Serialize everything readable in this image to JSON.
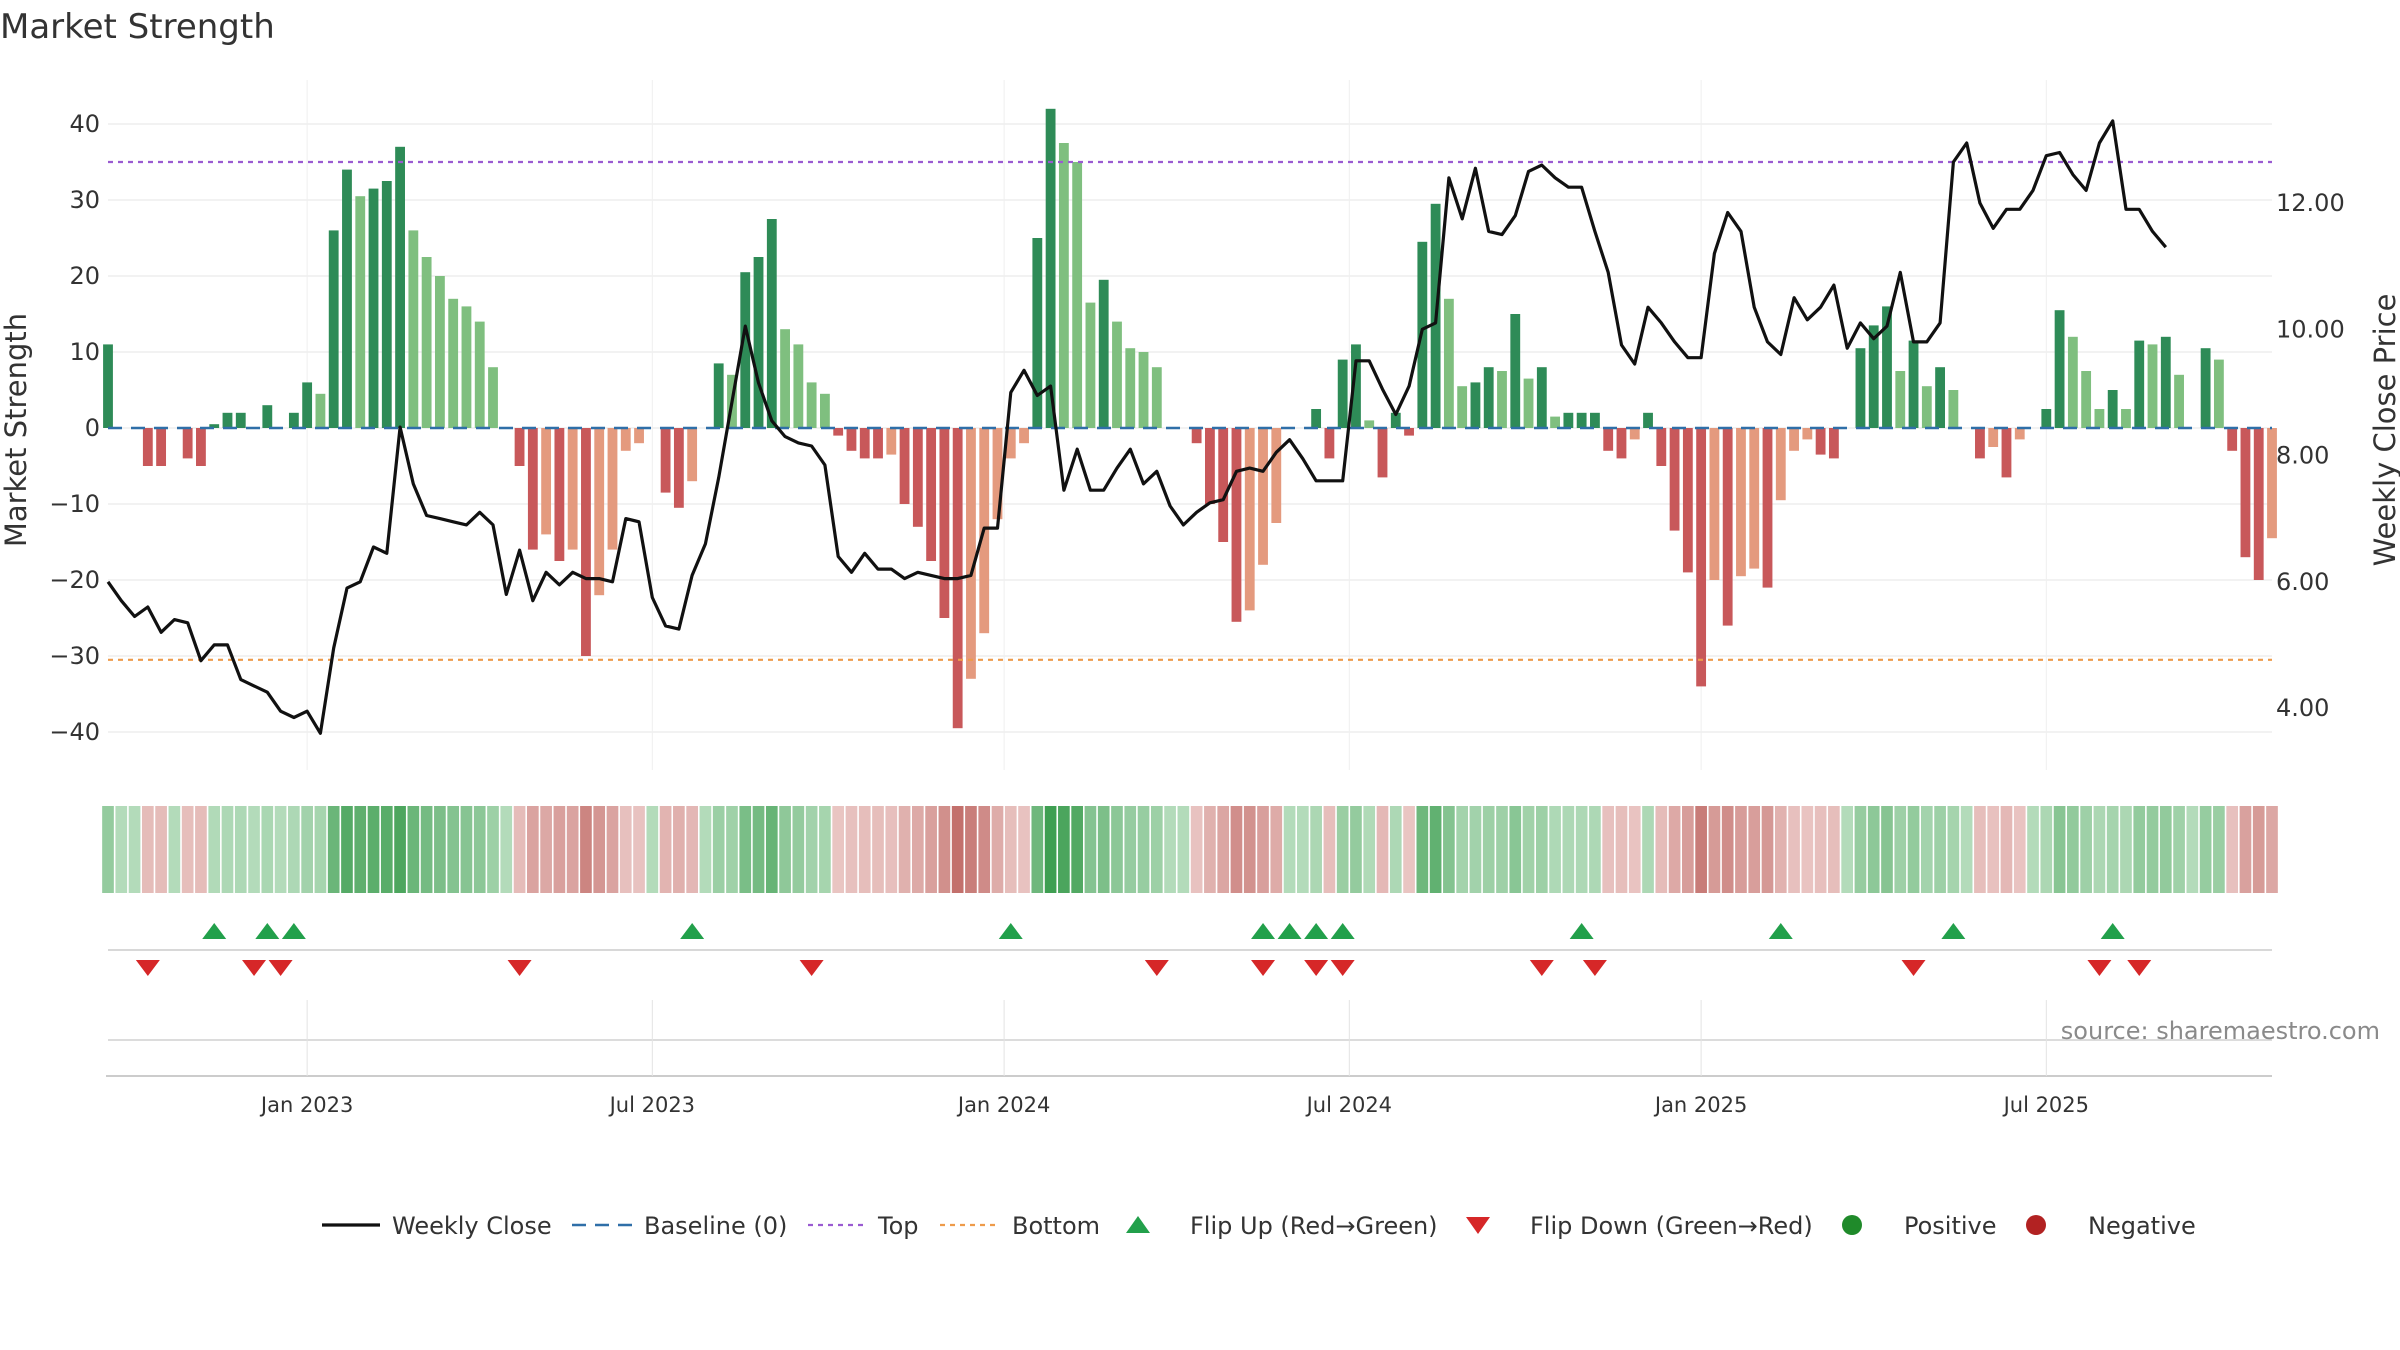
{
  "chart_data": {
    "type": "bar",
    "title": "Market Strength",
    "ylabel": "Market Strength",
    "y2label": "Weekly Close Price",
    "ylim": [
      -45,
      47
    ],
    "y2lim": [
      3.05,
      14.3
    ],
    "y_ticks": [
      "40",
      "30",
      "20",
      "10",
      "0",
      "−10",
      "−20",
      "−30",
      "−40"
    ],
    "y_tick_values": [
      40,
      30,
      20,
      10,
      0,
      -10,
      -20,
      -30,
      -40
    ],
    "y2_ticks": [
      "12.00",
      "10.00",
      "8.00",
      "6.00",
      "4.00"
    ],
    "y2_tick_values": [
      12,
      10,
      8,
      6,
      4
    ],
    "x_ticks": [
      "Jan 2023",
      "Jul 2023",
      "Jan 2024",
      "Jul 2024",
      "Jan 2025",
      "Jul 2025"
    ],
    "x_tick_week_index": [
      15,
      41,
      67.5,
      93.5,
      120,
      146
    ],
    "top_line": 35,
    "bottom_line": -30.5,
    "baseline": 0,
    "grid": true,
    "legend_position": "bottom",
    "strength": [
      11,
      0,
      0,
      -5,
      -5,
      0,
      -4,
      -5,
      0.5,
      2,
      2,
      0,
      3,
      0,
      2,
      6,
      4.5,
      26,
      34,
      30.5,
      31.5,
      32.5,
      37,
      26,
      22.5,
      20,
      17,
      16,
      14,
      8,
      0,
      -5,
      -16,
      -14,
      -17.5,
      -16,
      -30,
      -22,
      -16,
      -3,
      -2,
      0,
      -8.5,
      -10.5,
      -7,
      0,
      8.5,
      7,
      20.5,
      22.5,
      27.5,
      13,
      11,
      6,
      4.5,
      -1,
      -3,
      -4,
      -4,
      -3.5,
      -10,
      -13,
      -17.5,
      -25,
      -39.5,
      -33,
      -27,
      -12,
      -4,
      -2,
      25,
      42,
      37.5,
      35,
      16.5,
      19.5,
      14,
      10.5,
      10,
      8,
      0,
      0,
      -2,
      -10,
      -15,
      -25.5,
      -24,
      -18,
      -12.5,
      0,
      0,
      2.5,
      -4,
      9,
      11,
      1,
      -6.5,
      2,
      -1,
      24.5,
      29.5,
      17,
      5.5,
      6,
      8,
      7.5,
      15,
      6.5,
      8,
      1.5,
      2,
      2,
      2,
      -3,
      -4,
      -1.5,
      2,
      -5,
      -13.5,
      -19,
      -34,
      -20,
      -26,
      -19.5,
      -18.5,
      -21,
      -9.5,
      -3,
      -1.5,
      -3.5,
      -4,
      0,
      10.5,
      13.5,
      16,
      7.5,
      11.5,
      5.5,
      8,
      5,
      0,
      -4,
      -2.5,
      -6.5,
      -1.5,
      0,
      2.5,
      15.5,
      12,
      7.5,
      2.5,
      5,
      2.5,
      11.5,
      11,
      12,
      7,
      0,
      10.5,
      9,
      -3,
      -17,
      -20,
      -14.5
    ],
    "close": [
      6.0,
      5.7,
      5.45,
      5.6,
      5.2,
      5.4,
      5.35,
      4.75,
      5.0,
      5.0,
      4.45,
      4.35,
      4.25,
      3.95,
      3.85,
      3.95,
      3.6,
      4.95,
      5.9,
      6.0,
      6.55,
      6.45,
      8.45,
      7.55,
      7.05,
      7.0,
      6.95,
      6.9,
      7.1,
      6.9,
      5.8,
      6.5,
      5.7,
      6.15,
      5.95,
      6.15,
      6.05,
      6.05,
      6.0,
      7.0,
      6.95,
      5.75,
      5.3,
      5.25,
      6.1,
      6.6,
      7.65,
      8.85,
      10.05,
      9.15,
      8.55,
      8.3,
      8.2,
      8.15,
      7.85,
      6.4,
      6.15,
      6.45,
      6.2,
      6.2,
      6.05,
      6.15,
      6.1,
      6.05,
      6.05,
      6.1,
      6.85,
      6.85,
      9.0,
      9.35,
      8.95,
      9.1,
      7.45,
      8.1,
      7.45,
      7.45,
      7.8,
      8.1,
      7.55,
      7.75,
      7.2,
      6.9,
      7.1,
      7.25,
      7.3,
      7.75,
      7.8,
      7.75,
      8.05,
      8.25,
      7.95,
      7.6,
      7.6,
      7.6,
      9.5,
      9.5,
      9.05,
      8.65,
      9.1,
      10.0,
      10.1,
      12.4,
      11.75,
      12.55,
      11.55,
      11.5,
      11.8,
      12.5,
      12.6,
      12.4,
      12.25,
      12.25,
      11.55,
      10.9,
      9.75,
      9.45,
      10.35,
      10.1,
      9.8,
      9.55,
      9.55,
      11.2,
      11.85,
      11.55,
      10.35,
      9.8,
      9.6,
      10.5,
      10.15,
      10.35,
      10.7,
      9.7,
      10.1,
      9.85,
      10.05,
      10.9,
      9.8,
      9.8,
      10.1,
      12.65,
      12.95,
      12.0,
      11.6,
      11.9,
      11.9,
      12.2,
      12.75,
      12.8,
      12.45,
      12.2,
      12.95,
      13.3,
      11.9,
      11.9,
      11.55,
      11.3
    ],
    "flip_up_weeks": [
      8,
      12,
      14,
      44,
      68,
      87,
      89,
      91,
      93,
      111,
      126,
      139,
      151
    ],
    "flip_down_weeks": [
      3,
      11,
      13,
      31,
      53,
      79,
      87,
      91,
      93,
      108,
      112,
      136,
      150,
      153
    ],
    "legend": [
      "Weekly Close",
      "Baseline (0)",
      "Top",
      "Bottom",
      "Flip Up (Red→Green)",
      "Flip Down (Green→Red)",
      "Positive",
      "Negative"
    ],
    "source": "source: sharemaestro.com"
  },
  "colors": {
    "pos_dark": "#2e8b57",
    "pos_light": "#7fbf7f",
    "neg_dark": "#c8585a",
    "neg_light": "#e49a7e",
    "close": "#111111",
    "baseline": "#2f6fa8",
    "top": "#9a5bd1",
    "bottom": "#ee9b4b",
    "flip_up": "#22a04b",
    "flip_down": "#d62728",
    "positive": "#1f8a2a",
    "negative": "#b22222"
  }
}
